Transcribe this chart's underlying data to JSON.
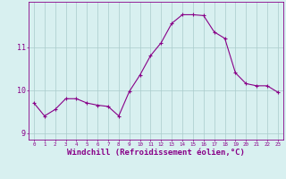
{
  "x": [
    0,
    1,
    2,
    3,
    4,
    5,
    6,
    7,
    8,
    9,
    10,
    11,
    12,
    13,
    14,
    15,
    16,
    17,
    18,
    19,
    20,
    21,
    22,
    23
  ],
  "y": [
    9.7,
    9.4,
    9.55,
    9.8,
    9.8,
    9.7,
    9.65,
    9.62,
    9.4,
    9.97,
    10.35,
    10.8,
    11.1,
    11.55,
    11.75,
    11.75,
    11.73,
    11.35,
    11.2,
    10.4,
    10.15,
    10.1,
    10.1,
    9.95
  ],
  "line_color": "#880088",
  "marker": "+",
  "marker_size": 3,
  "marker_linewidth": 0.8,
  "bg_color": "#d8f0f0",
  "grid_color": "#aacccc",
  "xlabel": "Windchill (Refroidissement éolien,°C)",
  "xlabel_fontsize": 6.5,
  "ytick_labels": [
    "9",
    "10",
    "11"
  ],
  "ytick_positions": [
    9,
    10,
    11
  ],
  "xtick_labels": [
    "0",
    "1",
    "2",
    "3",
    "4",
    "5",
    "6",
    "7",
    "8",
    "9",
    "10",
    "11",
    "12",
    "13",
    "14",
    "15",
    "16",
    "17",
    "18",
    "19",
    "20",
    "21",
    "22",
    "23"
  ],
  "ylim": [
    8.85,
    12.05
  ],
  "xlim": [
    -0.5,
    23.5
  ]
}
